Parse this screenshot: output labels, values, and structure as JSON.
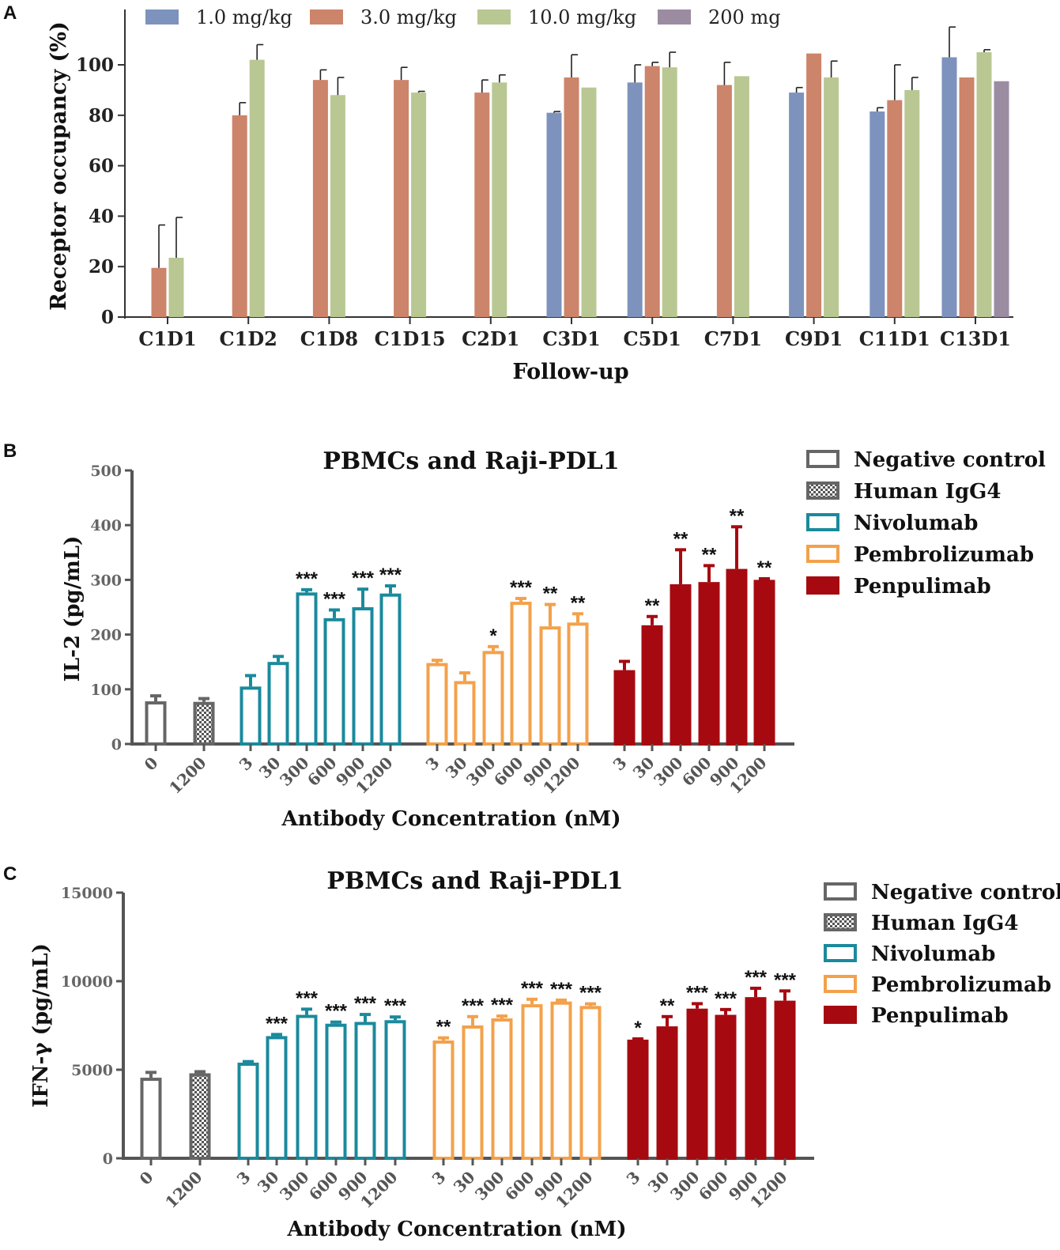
{
  "chart_data": [
    {
      "panel": "A",
      "type": "bar",
      "title": "",
      "xlabel": "Follow-up",
      "ylabel": "Receptor occupancy (%)",
      "ylim": [
        0,
        118
      ],
      "yticks": [
        "0",
        "20",
        "40",
        "60",
        "80",
        "100"
      ],
      "categories": [
        "C1D1",
        "C1D2",
        "C1D8",
        "C1D15",
        "C2D1",
        "C3D1",
        "C5D1",
        "C7D1",
        "C9D1",
        "C11D1",
        "C13D1"
      ],
      "series": [
        {
          "name": "1.0 mg/kg",
          "color": "#7d93bd",
          "values": [
            null,
            null,
            null,
            null,
            null,
            81,
            93,
            null,
            89,
            81.5,
            103
          ],
          "errors": [
            null,
            null,
            null,
            null,
            null,
            0.5,
            7,
            null,
            2,
            1.5,
            12
          ]
        },
        {
          "name": "3.0 mg/kg",
          "color": "#cc846a",
          "values": [
            19.5,
            80,
            94,
            94,
            89,
            95,
            99.5,
            92,
            104.5,
            86,
            95
          ],
          "errors": [
            17,
            5,
            4,
            5,
            5,
            9,
            1.5,
            9,
            0,
            14,
            0
          ]
        },
        {
          "name": "10.0 mg/kg",
          "color": "#b9c793",
          "values": [
            23.5,
            102,
            88,
            89,
            93,
            91,
            99,
            95.5,
            95,
            90,
            105
          ],
          "errors": [
            16,
            6,
            7,
            0.5,
            3,
            0,
            6,
            0,
            6.5,
            5,
            1
          ]
        },
        {
          "name": "200 mg",
          "color": "#9b8ca2",
          "values": [
            null,
            null,
            null,
            null,
            null,
            null,
            null,
            null,
            null,
            null,
            93.5
          ],
          "errors": [
            null,
            null,
            null,
            null,
            null,
            null,
            null,
            null,
            null,
            null,
            0
          ]
        }
      ]
    },
    {
      "panel": "B",
      "type": "bar",
      "title": "PBMCs and Raji-PDL1",
      "xlabel": "Antibody Concentration (nM)",
      "ylabel": "IL-2 (pg/mL)",
      "ylim": [
        0,
        500
      ],
      "yticks": [
        "0",
        "100",
        "200",
        "300",
        "400",
        "500"
      ],
      "groups": [
        {
          "name": "Negative control",
          "color": "#666666",
          "style": "outline",
          "categories": [
            "0"
          ],
          "values": [
            78
          ],
          "errors": [
            10
          ],
          "sig": [
            ""
          ]
        },
        {
          "name": "Human IgG4",
          "color": "#666666",
          "style": "checker",
          "categories": [
            "1200"
          ],
          "values": [
            77
          ],
          "errors": [
            6
          ],
          "sig": [
            ""
          ]
        },
        {
          "name": "Nivolumab",
          "color": "#1a8a9c",
          "style": "outline",
          "categories": [
            "3",
            "30",
            "300",
            "600",
            "900",
            "1200"
          ],
          "values": [
            105,
            150,
            277,
            230,
            250,
            275
          ],
          "errors": [
            20,
            10,
            5,
            15,
            33,
            14
          ],
          "sig": [
            "",
            "",
            "***",
            "***",
            "***",
            "***"
          ]
        },
        {
          "name": "Pembrolizumab",
          "color": "#f3a14b",
          "style": "outline",
          "categories": [
            "3",
            "30",
            "300",
            "600",
            "900",
            "1200"
          ],
          "values": [
            148,
            115,
            170,
            260,
            215,
            222
          ],
          "errors": [
            5,
            15,
            8,
            6,
            40,
            16
          ],
          "sig": [
            "",
            "",
            "*",
            "***",
            "**",
            "**"
          ]
        },
        {
          "name": "Penpulimab",
          "color": "#a60a10",
          "style": "filled",
          "categories": [
            "3",
            "30",
            "300",
            "600",
            "900",
            "1200"
          ],
          "values": [
            135,
            217,
            292,
            296,
            320,
            300
          ],
          "errors": [
            16,
            16,
            63,
            30,
            77,
            2
          ],
          "sig": [
            "",
            "**",
            "**",
            "**",
            "**",
            "**"
          ]
        }
      ]
    },
    {
      "panel": "C",
      "type": "bar",
      "title": "PBMCs and Raji-PDL1",
      "xlabel": "Antibody Concentration (nM)",
      "ylabel": "IFN-γ  (pg/mL)",
      "ylim": [
        0,
        15000
      ],
      "yticks": [
        "0",
        "5000",
        "10000",
        "15000"
      ],
      "groups": [
        {
          "name": "Negative control",
          "color": "#666666",
          "style": "outline",
          "categories": [
            "0"
          ],
          "values": [
            4550
          ],
          "errors": [
            300
          ],
          "sig": [
            ""
          ]
        },
        {
          "name": "Human IgG4",
          "color": "#666666",
          "style": "checker",
          "categories": [
            "1200"
          ],
          "values": [
            4800
          ],
          "errors": [
            90
          ],
          "sig": [
            ""
          ]
        },
        {
          "name": "Nivolumab",
          "color": "#1a8a9c",
          "style": "outline",
          "categories": [
            "3",
            "30",
            "300",
            "600",
            "900",
            "1200"
          ],
          "values": [
            5400,
            6900,
            8100,
            7600,
            7700,
            7800
          ],
          "errors": [
            60,
            90,
            320,
            90,
            420,
            180
          ],
          "sig": [
            "",
            "***",
            "***",
            "***",
            "***",
            "***"
          ]
        },
        {
          "name": "Pembrolizumab",
          "color": "#f3a14b",
          "style": "outline",
          "categories": [
            "3",
            "30",
            "300",
            "600",
            "900",
            "1200"
          ],
          "values": [
            6650,
            7500,
            7900,
            8700,
            8850,
            8600
          ],
          "errors": [
            150,
            500,
            130,
            280,
            80,
            120
          ],
          "sig": [
            "**",
            "***",
            "***",
            "***",
            "***",
            "***"
          ]
        },
        {
          "name": "Penpulimab",
          "color": "#a60a10",
          "style": "filled",
          "categories": [
            "3",
            "30",
            "300",
            "600",
            "900",
            "1200"
          ],
          "values": [
            6700,
            7450,
            8450,
            8100,
            9100,
            8900
          ],
          "errors": [
            40,
            550,
            280,
            300,
            500,
            550
          ],
          "sig": [
            "*",
            "**",
            "***",
            "***",
            "***",
            "***"
          ]
        }
      ]
    }
  ],
  "panel_labels": [
    "A",
    "B",
    "C"
  ]
}
